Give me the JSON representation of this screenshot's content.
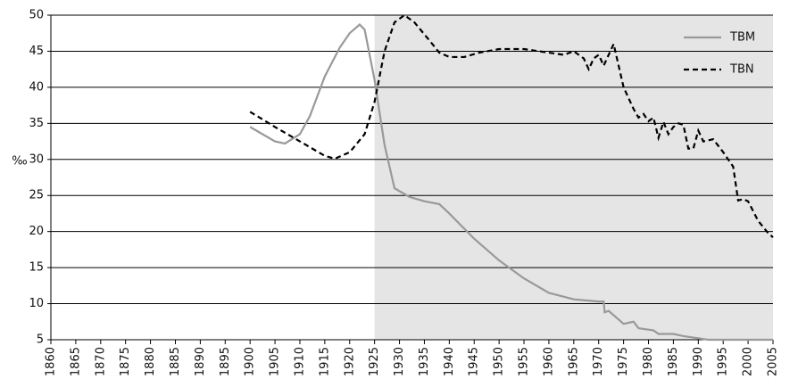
{
  "chart_data": {
    "type": "line",
    "ylabel": "‰",
    "xlim": [
      1860,
      2005
    ],
    "ylim": [
      5,
      50
    ],
    "xticks": [
      1860,
      1865,
      1870,
      1875,
      1880,
      1885,
      1890,
      1895,
      1900,
      1905,
      1910,
      1915,
      1920,
      1925,
      1930,
      1935,
      1940,
      1945,
      1950,
      1955,
      1960,
      1965,
      1970,
      1975,
      1980,
      1985,
      1990,
      1995,
      2000,
      2005
    ],
    "yticks": [
      5,
      10,
      15,
      20,
      25,
      30,
      35,
      40,
      45,
      50
    ],
    "grid": true,
    "legend": "upper-right",
    "shaded_x": [
      1925,
      2005
    ],
    "shade_color": "#e5e5e5",
    "series": [
      {
        "name": "TBM",
        "color": "#999999",
        "dash": "solid",
        "x": [
          1900,
          1905,
          1907,
          1910,
          1912,
          1915,
          1918,
          1920,
          1922,
          1923,
          1925,
          1927,
          1929,
          1932,
          1935,
          1938,
          1940,
          1945,
          1950,
          1955,
          1960,
          1965,
          1970,
          1971,
          1971.2,
          1972,
          1974,
          1975,
          1977,
          1978,
          1980,
          1981,
          1982,
          1985,
          1987,
          1990,
          1992,
          1995,
          2000,
          2005
        ],
        "values": [
          34.5,
          32.5,
          32.2,
          33.5,
          36,
          41.5,
          45.5,
          47.5,
          48.7,
          48,
          41,
          32,
          26,
          24.8,
          24.2,
          23.8,
          22.5,
          19,
          16,
          13.5,
          11.5,
          10.6,
          10.3,
          10.3,
          8.8,
          9,
          7.8,
          7.2,
          7.5,
          6.6,
          6.4,
          6.3,
          5.8,
          5.8,
          5.5,
          5.2,
          5,
          5,
          5,
          5
        ]
      },
      {
        "name": "TBN",
        "color": "#000000",
        "dash": "dashed",
        "x": [
          1900,
          1905,
          1910,
          1915,
          1917,
          1920,
          1923,
          1925,
          1927,
          1929,
          1931,
          1933,
          1936,
          1938,
          1940,
          1943,
          1946,
          1950,
          1955,
          1960,
          1963,
          1965,
          1967,
          1968,
          1969,
          1970,
          1971,
          1973,
          1975,
          1977,
          1978,
          1979,
          1980,
          1981,
          1982,
          1983,
          1984,
          1985,
          1986,
          1987,
          1988,
          1989,
          1990,
          1991,
          1993,
          1995,
          1997,
          1998,
          1999,
          2000,
          2002,
          2004,
          2005
        ],
        "values": [
          36.6,
          34.5,
          32.5,
          30.5,
          30.1,
          31,
          33.5,
          38,
          45,
          49,
          50,
          49,
          46.5,
          44.8,
          44.2,
          44.2,
          44.8,
          45.3,
          45.3,
          44.8,
          44.5,
          45,
          44,
          42.5,
          44,
          44.5,
          43,
          46,
          40,
          37,
          35.8,
          36.3,
          35.3,
          35.8,
          33,
          35.2,
          33.5,
          34.5,
          35,
          34.8,
          31.5,
          31.5,
          34,
          32.5,
          32.8,
          31,
          29,
          24.3,
          24.5,
          24.2,
          21.5,
          19.8,
          19.2
        ]
      }
    ]
  }
}
